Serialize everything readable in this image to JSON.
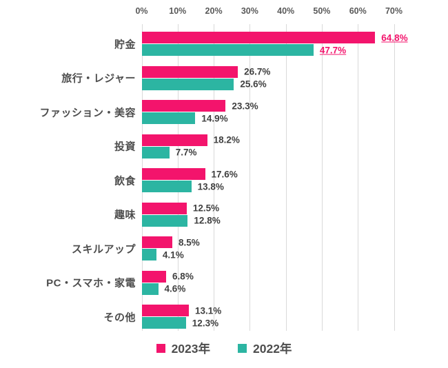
{
  "chart_data": {
    "type": "bar",
    "orientation": "horizontal",
    "title": "",
    "categories": [
      "貯金",
      "旅行・レジャー",
      "ファッション・美容",
      "投資",
      "飲食",
      "趣味",
      "スキルアップ",
      "PC・スマホ・家電",
      "その他"
    ],
    "series": [
      {
        "name": "2023年",
        "color": "#f3146c",
        "values": [
          64.8,
          26.7,
          23.3,
          18.2,
          17.6,
          12.5,
          8.5,
          6.8,
          13.1
        ]
      },
      {
        "name": "2022年",
        "color": "#2cb5a2",
        "values": [
          47.7,
          25.6,
          14.9,
          7.7,
          13.8,
          12.8,
          4.1,
          4.6,
          12.3
        ]
      }
    ],
    "value_labels": {
      "suffix": "%",
      "highlighted_category": "貯金",
      "highlight_color": "#f3146c",
      "highlight_underline": true
    },
    "x_axis": {
      "position": "top",
      "min": 0,
      "max": 70,
      "tick_step": 10,
      "tick_labels": [
        "0%",
        "10%",
        "20%",
        "30%",
        "40%",
        "50%",
        "60%",
        "70%"
      ]
    },
    "grid": true,
    "legend": {
      "position": "bottom",
      "entries": [
        {
          "label": "2023年",
          "color": "#f3146c"
        },
        {
          "label": "2022年",
          "color": "#2cb5a2"
        }
      ]
    }
  },
  "styles": {
    "background": "#ffffff",
    "grid_color": "#d9d9d9",
    "tick_color": "#595959",
    "category_color": "#4d4d4d",
    "value_color": "#404040"
  }
}
